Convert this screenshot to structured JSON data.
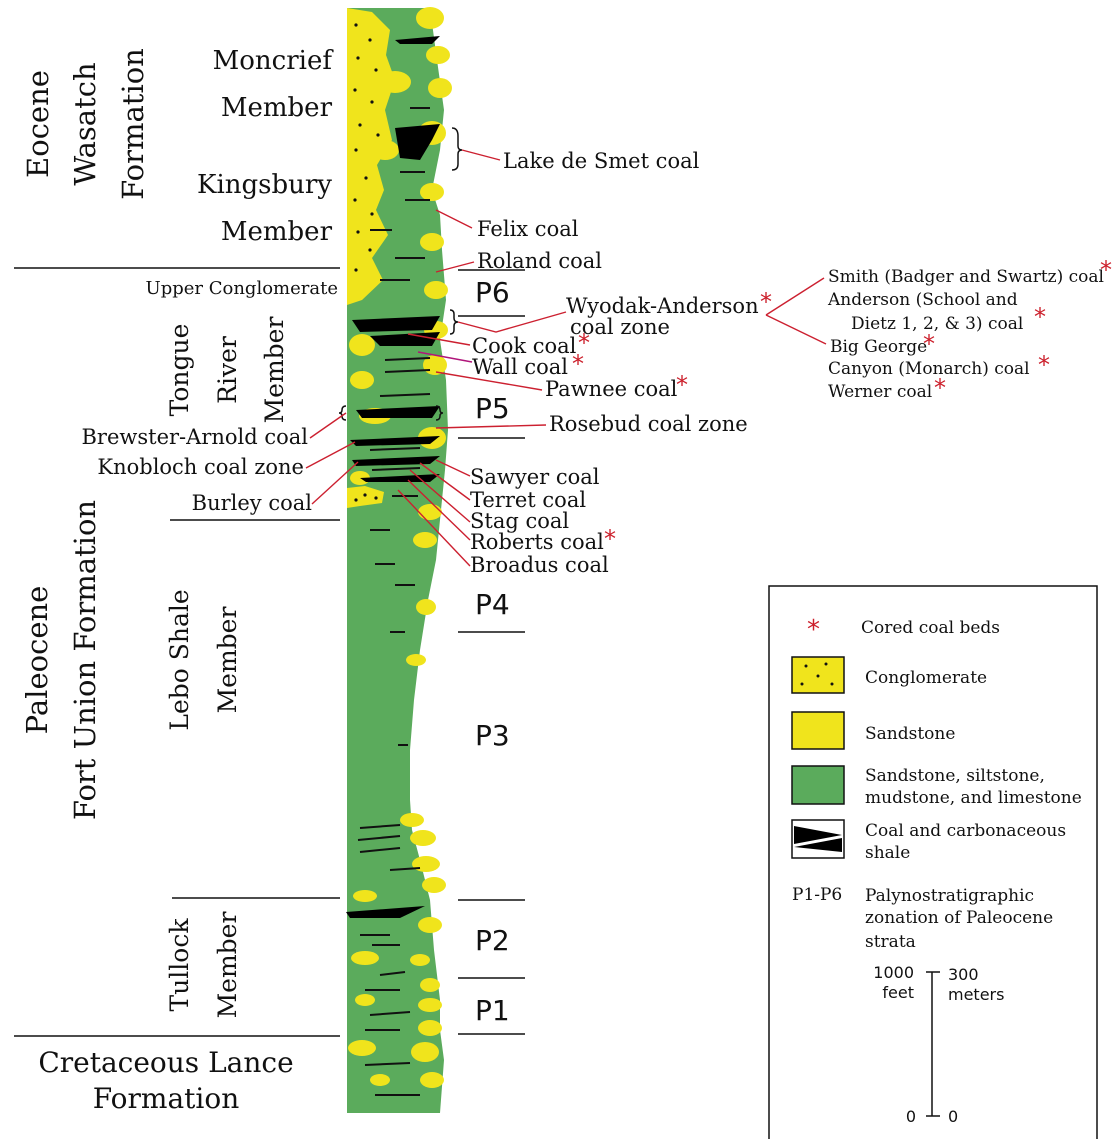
{
  "units": {
    "eocene": {
      "epoch": "Eocene",
      "formation_1": "Wasatch",
      "formation_2": "Formation"
    },
    "paleocene": {
      "epoch": "Paleocene",
      "formation": "Fort Union Formation"
    },
    "cretaceous": {
      "line1": "Cretaceous Lance",
      "line2": "Formation"
    }
  },
  "members": {
    "moncrief_1": "Moncrief",
    "moncrief_2": "Member",
    "kingsbury_1": "Kingsbury",
    "kingsbury_2": "Member",
    "upper_conglomerate": "Upper Conglomerate",
    "tongue_1": "Tongue",
    "tongue_2": "River",
    "tongue_3": "Member",
    "lebo_1": "Lebo Shale",
    "lebo_2": "Member",
    "tullock_1": "Tullock",
    "tullock_2": "Member"
  },
  "coals_right": {
    "lake_de_smet": "Lake de Smet coal",
    "felix": "Felix coal",
    "roland": "Roland coal",
    "wyodak_1": "Wyodak-Anderson",
    "wyodak_2": "coal zone",
    "cook": "Cook coal",
    "wall": "Wall coal",
    "pawnee": "Pawnee coal",
    "rosebud": "Rosebud coal zone",
    "sawyer": "Sawyer coal",
    "terret": "Terret coal",
    "stag": "Stag coal",
    "roberts": "Roberts coal",
    "broadus": "Broadus coal"
  },
  "coals_left": {
    "brewster": "Brewster-Arnold coal",
    "knobloch": "Knobloch coal zone",
    "burley": "Burley coal"
  },
  "wyodak_sub": {
    "smith": "Smith (Badger and Swartz) coal",
    "anderson_1": "Anderson (School and",
    "anderson_2": "Dietz 1, 2, & 3) coal",
    "big_george": "Big George",
    "canyon": "Canyon (Monarch) coal",
    "werner": "Werner coal"
  },
  "zones": {
    "p6": "P6",
    "p5": "P5",
    "p4": "P4",
    "p3": "P3",
    "p2": "P2",
    "p1": "P1"
  },
  "asterisk": "*",
  "legend": {
    "cored": "Cored coal beds",
    "conglomerate": "Conglomerate",
    "sandstone": "Sandstone",
    "mixed_1": "Sandstone, siltstone,",
    "mixed_2": "mudstone, and limestone",
    "coal_1": "Coal and carbonaceous",
    "coal_2": "shale",
    "p_key": "P1-P6",
    "p_desc_1": "Palynostratigraphic",
    "p_desc_2": "zonation of Paleocene",
    "p_desc_3": "strata",
    "scale_ft_top": "1000",
    "scale_ft_unit": "feet",
    "scale_m_top": "300",
    "scale_m_unit": "meters",
    "scale_ft_zero": "0",
    "scale_m_zero": "0"
  },
  "colors": {
    "green": "#5bab5c",
    "yellow": "#f0e41c",
    "coal": "#000000",
    "leader_red": "#cc2030",
    "asterisk_red": "#cc1f2b",
    "magenta_leader": "#b0157a"
  }
}
